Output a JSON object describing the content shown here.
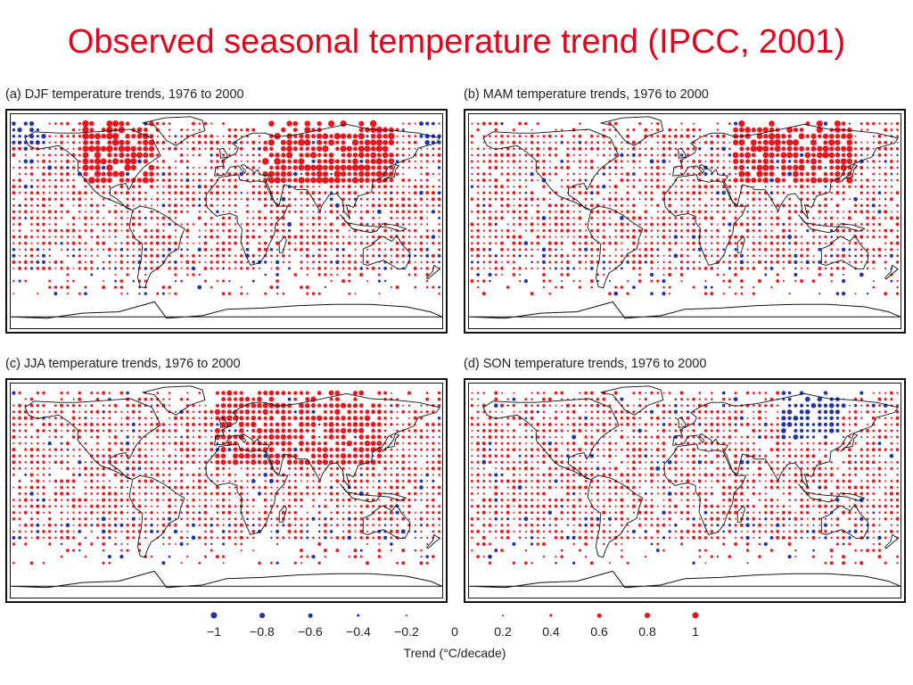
{
  "title": "Observed seasonal temperature trend (IPCC, 2001)",
  "colors": {
    "title": "#e0001b",
    "warming": "#e8141e",
    "cooling": "#2233aa",
    "land": "#111111"
  },
  "panels": [
    {
      "caption": "(a) DJF temperature trends, 1976 to 2000",
      "season": "DJF",
      "seed": 11
    },
    {
      "caption": "(b) MAM temperature trends, 1976 to 2000",
      "season": "MAM",
      "seed": 23
    },
    {
      "caption": "(c) JJA temperature trends, 1976 to 2000",
      "season": "JJA",
      "seed": 37
    },
    {
      "caption": "(d) SON temperature trends, 1976 to 2000",
      "season": "SON",
      "seed": 51
    }
  ],
  "legend": {
    "title": "Trend (°C/decade)",
    "ticks": [
      "−1",
      "−0.8",
      "−0.6",
      "−0.4",
      "−0.2",
      "0",
      "0.2",
      "0.4",
      "0.6",
      "0.8",
      "1"
    ],
    "values": [
      -1,
      -0.8,
      -0.6,
      -0.4,
      -0.2,
      0,
      0.2,
      0.4,
      0.6,
      0.8,
      1
    ]
  }
}
